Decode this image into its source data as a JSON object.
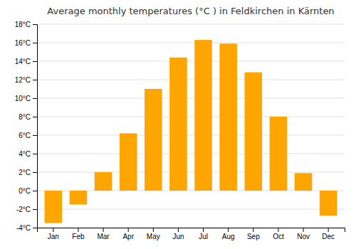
{
  "chart_data": {
    "type": "bar",
    "title": "Average monthly temperatures (°C ) in Feldkirchen in Kärnten",
    "categories": [
      "Jan",
      "Feb",
      "Mar",
      "Apr",
      "May",
      "Jun",
      "Jul",
      "Aug",
      "Sep",
      "Oct",
      "Nov",
      "Dec"
    ],
    "values": [
      -3.5,
      -1.5,
      2.0,
      6.2,
      11.0,
      14.4,
      16.3,
      15.9,
      12.8,
      8.0,
      1.9,
      -2.7
    ],
    "color": "#FFA500",
    "ylim": [
      -4,
      18
    ],
    "yticks": [
      {
        "value": -4,
        "label": "-4°C"
      },
      {
        "value": -2,
        "label": "-2°C"
      },
      {
        "value": 0,
        "label": "0°C"
      },
      {
        "value": 2,
        "label": "2°C"
      },
      {
        "value": 4,
        "label": "4°C"
      },
      {
        "value": 6,
        "label": "6°C"
      },
      {
        "value": 8,
        "label": "8°C"
      },
      {
        "value": 10,
        "label": "10°C"
      },
      {
        "value": 12,
        "label": "12°C"
      },
      {
        "value": 14,
        "label": "14°C"
      },
      {
        "value": 16,
        "label": "16°C"
      },
      {
        "value": 18,
        "label": "18°C"
      }
    ],
    "grid": true
  }
}
